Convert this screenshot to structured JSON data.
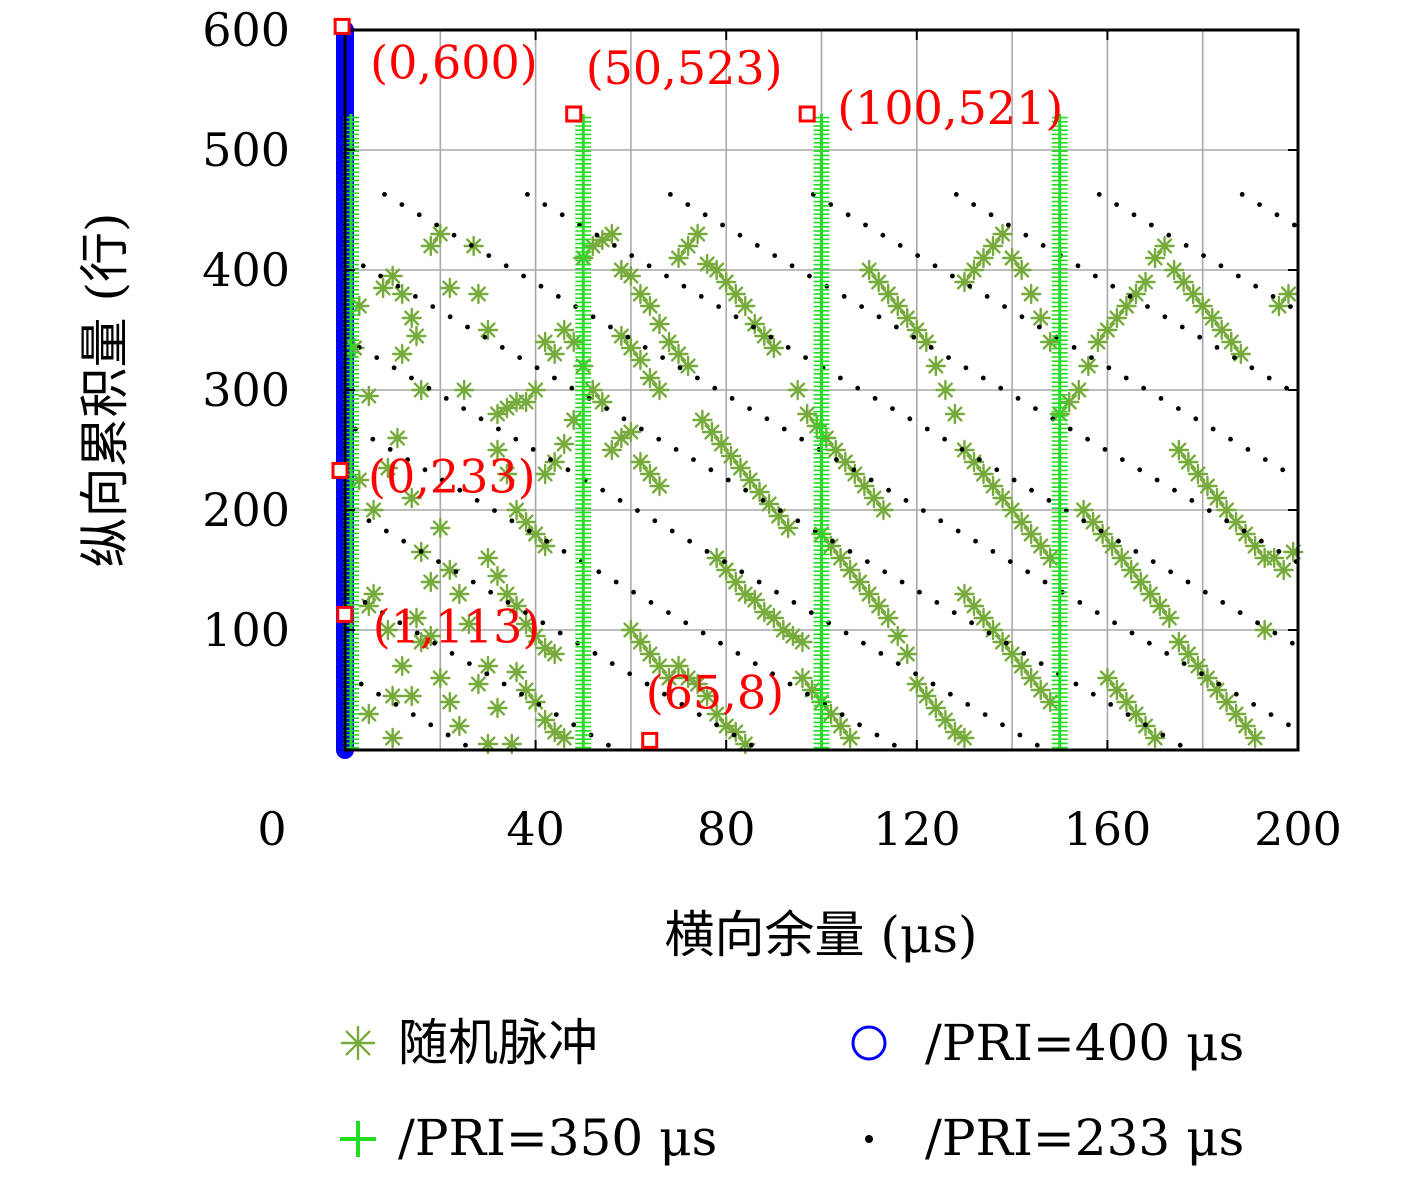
{
  "chart_data": {
    "type": "scatter",
    "xlabel": "横向余量 (μs)",
    "ylabel": "纵向累积量 (行)",
    "xlim": [
      0,
      200
    ],
    "ylim": [
      0,
      600
    ],
    "x_ticks": [
      0,
      40,
      80,
      120,
      160,
      200
    ],
    "y_ticks": [
      100,
      200,
      300,
      400,
      500,
      600
    ],
    "grid": true,
    "legend_position": "bottom",
    "legend": [
      {
        "label": "随机脉冲",
        "marker": "asterisk",
        "color": "#76ab3c"
      },
      {
        "label": "/PRI=400 μs",
        "marker": "circle",
        "color": "#0000ff"
      },
      {
        "label": "/PRI=350 μs",
        "marker": "plus",
        "color": "#22dd22"
      },
      {
        "label": "/PRI=233 μs",
        "marker": "dot",
        "color": "#000000"
      }
    ],
    "series": [
      {
        "name": "/PRI=400 μs",
        "color": "#0000ff",
        "x": [
          0
        ],
        "y_range": [
          0,
          600
        ]
      },
      {
        "name": "/PRI=350 μs",
        "color": "#22dd22",
        "x": [
          0,
          50,
          100,
          150
        ],
        "y_range": [
          0,
          530
        ]
      },
      {
        "name": "/PRI=233 μs",
        "color": "#000000",
        "slope": -2.33,
        "x_at_y0": [
          -3,
          27,
          57,
          87,
          117,
          147,
          177,
          207,
          237,
          267,
          297,
          327,
          357,
          387,
          417
        ],
        "y_range": [
          0,
          466
        ]
      },
      {
        "name": "随机脉冲",
        "color": "#76ab3c",
        "points": [
          [
            2,
            335
          ],
          [
            3,
            370
          ],
          [
            3,
            225
          ],
          [
            5,
            30
          ],
          [
            5,
            295
          ],
          [
            5,
            120
          ],
          [
            6,
            200
          ],
          [
            8,
            385
          ],
          [
            10,
            395
          ],
          [
            12,
            380
          ],
          [
            14,
            360
          ],
          [
            12,
            330
          ],
          [
            15,
            345
          ],
          [
            16,
            300
          ],
          [
            18,
            420
          ],
          [
            20,
            430
          ],
          [
            22,
            385
          ],
          [
            9,
            235
          ],
          [
            11,
            260
          ],
          [
            14,
            210
          ],
          [
            16,
            165
          ],
          [
            18,
            140
          ],
          [
            20,
            185
          ],
          [
            22,
            150
          ],
          [
            24,
            130
          ],
          [
            26,
            105
          ],
          [
            9,
            100
          ],
          [
            12,
            70
          ],
          [
            14,
            45
          ],
          [
            16,
            90
          ],
          [
            20,
            60
          ],
          [
            22,
            40
          ],
          [
            24,
            20
          ],
          [
            28,
            55
          ],
          [
            30,
            70
          ],
          [
            32,
            35
          ],
          [
            35,
            5
          ],
          [
            6,
            130
          ],
          [
            15,
            110
          ],
          [
            18,
            95
          ],
          [
            10,
            45
          ],
          [
            10,
            10
          ],
          [
            25,
            300
          ],
          [
            27,
            420
          ],
          [
            28,
            380
          ],
          [
            30,
            350
          ],
          [
            32,
            280
          ],
          [
            34,
            285
          ],
          [
            36,
            290
          ],
          [
            38,
            290
          ],
          [
            40,
            300
          ],
          [
            42,
            340
          ],
          [
            44,
            330
          ],
          [
            46,
            350
          ],
          [
            48,
            340
          ],
          [
            32,
            250
          ],
          [
            34,
            230
          ],
          [
            36,
            200
          ],
          [
            38,
            190
          ],
          [
            40,
            180
          ],
          [
            42,
            170
          ],
          [
            30,
            160
          ],
          [
            32,
            145
          ],
          [
            34,
            130
          ],
          [
            36,
            120
          ],
          [
            38,
            105
          ],
          [
            40,
            95
          ],
          [
            42,
            85
          ],
          [
            44,
            80
          ],
          [
            36,
            65
          ],
          [
            38,
            50
          ],
          [
            40,
            40
          ],
          [
            42,
            25
          ],
          [
            44,
            15
          ],
          [
            46,
            10
          ],
          [
            30,
            5
          ],
          [
            50,
            320
          ],
          [
            52,
            300
          ],
          [
            54,
            290
          ],
          [
            56,
            250
          ],
          [
            58,
            260
          ],
          [
            60,
            265
          ],
          [
            62,
            240
          ],
          [
            64,
            230
          ],
          [
            66,
            220
          ],
          [
            48,
            275
          ],
          [
            46,
            255
          ],
          [
            44,
            240
          ],
          [
            42,
            230
          ],
          [
            50,
            410
          ],
          [
            52,
            420
          ],
          [
            54,
            425
          ],
          [
            56,
            430
          ],
          [
            58,
            400
          ],
          [
            60,
            395
          ],
          [
            62,
            380
          ],
          [
            64,
            370
          ],
          [
            66,
            355
          ],
          [
            68,
            340
          ],
          [
            70,
            330
          ],
          [
            72,
            320
          ],
          [
            58,
            345
          ],
          [
            60,
            335
          ],
          [
            62,
            325
          ],
          [
            64,
            310
          ],
          [
            66,
            300
          ],
          [
            70,
            410
          ],
          [
            72,
            420
          ],
          [
            74,
            430
          ],
          [
            76,
            405
          ],
          [
            78,
            400
          ],
          [
            80,
            390
          ],
          [
            82,
            380
          ],
          [
            84,
            370
          ],
          [
            86,
            355
          ],
          [
            88,
            345
          ],
          [
            90,
            335
          ],
          [
            75,
            275
          ],
          [
            77,
            265
          ],
          [
            79,
            255
          ],
          [
            81,
            245
          ],
          [
            83,
            235
          ],
          [
            85,
            225
          ],
          [
            87,
            215
          ],
          [
            89,
            205
          ],
          [
            91,
            195
          ],
          [
            93,
            185
          ],
          [
            78,
            160
          ],
          [
            80,
            150
          ],
          [
            82,
            140
          ],
          [
            84,
            130
          ],
          [
            86,
            125
          ],
          [
            88,
            115
          ],
          [
            90,
            110
          ],
          [
            92,
            100
          ],
          [
            94,
            95
          ],
          [
            96,
            90
          ],
          [
            70,
            70
          ],
          [
            72,
            60
          ],
          [
            74,
            55
          ],
          [
            76,
            45
          ],
          [
            78,
            30
          ],
          [
            80,
            20
          ],
          [
            82,
            15
          ],
          [
            84,
            5
          ],
          [
            60,
            100
          ],
          [
            62,
            90
          ],
          [
            64,
            80
          ],
          [
            66,
            70
          ],
          [
            68,
            60
          ],
          [
            95,
            300
          ],
          [
            97,
            280
          ],
          [
            99,
            270
          ],
          [
            101,
            260
          ],
          [
            103,
            250
          ],
          [
            105,
            240
          ],
          [
            107,
            230
          ],
          [
            109,
            220
          ],
          [
            111,
            210
          ],
          [
            113,
            200
          ],
          [
            110,
            400
          ],
          [
            112,
            390
          ],
          [
            114,
            380
          ],
          [
            116,
            370
          ],
          [
            118,
            360
          ],
          [
            120,
            350
          ],
          [
            122,
            340
          ],
          [
            124,
            320
          ],
          [
            126,
            300
          ],
          [
            128,
            280
          ],
          [
            100,
            180
          ],
          [
            102,
            170
          ],
          [
            104,
            160
          ],
          [
            106,
            150
          ],
          [
            108,
            140
          ],
          [
            110,
            130
          ],
          [
            112,
            120
          ],
          [
            114,
            110
          ],
          [
            116,
            95
          ],
          [
            118,
            80
          ],
          [
            96,
            60
          ],
          [
            98,
            50
          ],
          [
            100,
            40
          ],
          [
            102,
            30
          ],
          [
            104,
            20
          ],
          [
            106,
            10
          ],
          [
            120,
            55
          ],
          [
            122,
            45
          ],
          [
            124,
            35
          ],
          [
            126,
            25
          ],
          [
            128,
            15
          ],
          [
            130,
            10
          ],
          [
            130,
            390
          ],
          [
            132,
            400
          ],
          [
            134,
            410
          ],
          [
            136,
            420
          ],
          [
            138,
            430
          ],
          [
            140,
            410
          ],
          [
            142,
            400
          ],
          [
            144,
            380
          ],
          [
            146,
            360
          ],
          [
            148,
            340
          ],
          [
            130,
            250
          ],
          [
            132,
            240
          ],
          [
            134,
            230
          ],
          [
            136,
            220
          ],
          [
            138,
            210
          ],
          [
            140,
            200
          ],
          [
            142,
            190
          ],
          [
            144,
            180
          ],
          [
            146,
            170
          ],
          [
            148,
            160
          ],
          [
            130,
            130
          ],
          [
            132,
            120
          ],
          [
            134,
            110
          ],
          [
            136,
            100
          ],
          [
            138,
            90
          ],
          [
            140,
            80
          ],
          [
            142,
            70
          ],
          [
            144,
            60
          ],
          [
            146,
            50
          ],
          [
            148,
            40
          ],
          [
            150,
            280
          ],
          [
            152,
            290
          ],
          [
            154,
            300
          ],
          [
            156,
            320
          ],
          [
            158,
            340
          ],
          [
            160,
            350
          ],
          [
            162,
            360
          ],
          [
            164,
            370
          ],
          [
            166,
            380
          ],
          [
            168,
            390
          ],
          [
            155,
            200
          ],
          [
            157,
            190
          ],
          [
            159,
            180
          ],
          [
            161,
            170
          ],
          [
            163,
            160
          ],
          [
            165,
            150
          ],
          [
            167,
            140
          ],
          [
            169,
            130
          ],
          [
            171,
            120
          ],
          [
            173,
            110
          ],
          [
            160,
            60
          ],
          [
            162,
            50
          ],
          [
            164,
            40
          ],
          [
            166,
            30
          ],
          [
            168,
            20
          ],
          [
            170,
            10
          ],
          [
            170,
            410
          ],
          [
            172,
            420
          ],
          [
            174,
            400
          ],
          [
            176,
            390
          ],
          [
            178,
            380
          ],
          [
            180,
            370
          ],
          [
            182,
            360
          ],
          [
            184,
            350
          ],
          [
            186,
            340
          ],
          [
            188,
            330
          ],
          [
            175,
            250
          ],
          [
            177,
            240
          ],
          [
            179,
            230
          ],
          [
            181,
            220
          ],
          [
            183,
            210
          ],
          [
            185,
            200
          ],
          [
            187,
            190
          ],
          [
            189,
            180
          ],
          [
            191,
            170
          ],
          [
            193,
            160
          ],
          [
            175,
            90
          ],
          [
            177,
            80
          ],
          [
            179,
            70
          ],
          [
            181,
            60
          ],
          [
            183,
            50
          ],
          [
            185,
            40
          ],
          [
            187,
            30
          ],
          [
            189,
            20
          ],
          [
            191,
            10
          ],
          [
            193,
            100
          ],
          [
            195,
            160
          ],
          [
            197,
            150
          ],
          [
            199,
            165
          ],
          [
            196,
            370
          ],
          [
            198,
            380
          ]
        ]
      }
    ],
    "annotations": [
      {
        "text": "(0,600)",
        "x": 0,
        "y": 600
      },
      {
        "text": "(50,523)",
        "x": 50,
        "y": 523
      },
      {
        "text": "(100,521)",
        "x": 100,
        "y": 521
      },
      {
        "text": "(0,233)",
        "x": 0,
        "y": 233
      },
      {
        "text": "(1,113)",
        "x": 1,
        "y": 113
      },
      {
        "text": "(65,8)",
        "x": 65,
        "y": 8
      }
    ]
  }
}
